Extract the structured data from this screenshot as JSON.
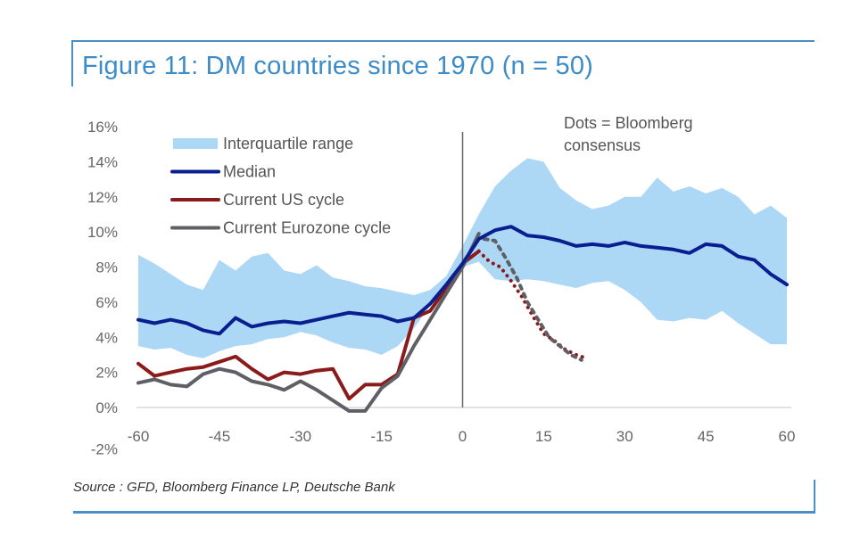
{
  "title": "Figure 11: DM countries since 1970 (n = 50)",
  "source": "Source : GFD, Bloomberg Finance LP, Deutsche Bank",
  "colors": {
    "frame": "#4a90c8",
    "title": "#3d8cc8",
    "iqr": "#add8f5",
    "median": "#0a1f8f",
    "us": "#8b1a1a",
    "ez": "#5f5f66",
    "zero_line": "#666666"
  },
  "chart_data": {
    "type": "line",
    "title": "Figure 11: DM countries since 1970 (n = 50)",
    "xlabel": "",
    "ylabel": "",
    "xlim": [
      -60,
      60
    ],
    "ylim": [
      -2,
      16
    ],
    "x_ticks": [
      -60,
      -45,
      -30,
      -15,
      0,
      15,
      30,
      45,
      60
    ],
    "x_tick_labels": [
      "-60",
      "-45",
      "-30",
      "-15",
      "0",
      "15",
      "30",
      "45",
      "60"
    ],
    "y_ticks": [
      -2,
      0,
      2,
      4,
      6,
      8,
      10,
      12,
      14,
      16
    ],
    "y_tick_labels": [
      "-2%",
      "0%",
      "2%",
      "4%",
      "6%",
      "8%",
      "10%",
      "12%",
      "14%",
      "16%"
    ],
    "grid": false,
    "legend_position": "top-left",
    "annotation": "Dots = Bloomberg consensus",
    "x": [
      -60,
      -57,
      -54,
      -51,
      -48,
      -45,
      -42,
      -39,
      -36,
      -33,
      -30,
      -27,
      -24,
      -21,
      -18,
      -15,
      -12,
      -9,
      -6,
      -3,
      0,
      3,
      6,
      9,
      12,
      15,
      18,
      21,
      24,
      27,
      30,
      33,
      36,
      39,
      42,
      45,
      48,
      51,
      54,
      57,
      60
    ],
    "series": [
      {
        "name": "Interquartile range",
        "type": "band",
        "lower": [
          3.5,
          3.3,
          3.4,
          3.0,
          2.8,
          3.2,
          3.5,
          3.6,
          3.9,
          4.0,
          4.3,
          4.1,
          3.7,
          3.4,
          3.3,
          3.0,
          3.5,
          4.5,
          5.8,
          7.0,
          8.0,
          8.3,
          7.3,
          7.2,
          7.3,
          7.2,
          7.0,
          6.8,
          7.1,
          7.2,
          6.7,
          6.0,
          5.0,
          4.9,
          5.1,
          5.0,
          5.5,
          4.8,
          4.2,
          3.6,
          3.6
        ],
        "upper": [
          8.7,
          8.2,
          7.6,
          7.0,
          6.7,
          8.4,
          7.8,
          8.6,
          8.8,
          7.8,
          7.6,
          8.1,
          7.4,
          7.2,
          6.9,
          6.8,
          6.6,
          6.4,
          6.7,
          7.5,
          9.2,
          11.0,
          12.6,
          13.5,
          14.2,
          14.0,
          12.5,
          11.8,
          11.3,
          11.5,
          12.0,
          12.0,
          13.1,
          12.3,
          12.6,
          12.2,
          12.5,
          12.0,
          11.0,
          11.5,
          10.8
        ]
      },
      {
        "name": "Median",
        "type": "line",
        "values": [
          5.0,
          4.8,
          5.0,
          4.8,
          4.4,
          4.2,
          5.1,
          4.6,
          4.8,
          4.9,
          4.8,
          5.0,
          5.2,
          5.4,
          5.3,
          5.2,
          4.9,
          5.1,
          5.9,
          7.0,
          8.2,
          9.6,
          10.1,
          10.3,
          9.8,
          9.7,
          9.5,
          9.2,
          9.3,
          9.2,
          9.4,
          9.2,
          9.1,
          9.0,
          8.8,
          9.3,
          9.2,
          8.6,
          8.4,
          7.6,
          7.0
        ]
      },
      {
        "name": "Current US cycle",
        "type": "line",
        "values": [
          2.5,
          1.8,
          2.0,
          2.2,
          2.3,
          2.6,
          2.9,
          2.2,
          1.6,
          2.0,
          1.9,
          2.1,
          2.2,
          0.5,
          1.3,
          1.3,
          1.9,
          5.1,
          5.5,
          6.8,
          8.2,
          8.9,
          null,
          null,
          null,
          null,
          null,
          null,
          null,
          null,
          null,
          null,
          null,
          null,
          null,
          null,
          null,
          null,
          null,
          null,
          null
        ]
      },
      {
        "name": "Current US cycle (Bloomberg consensus)",
        "type": "dotted",
        "x": [
          3,
          5,
          7,
          9,
          11,
          13,
          15,
          17,
          19,
          21,
          23
        ],
        "values": [
          8.9,
          8.3,
          8.0,
          7.2,
          6.3,
          5.2,
          4.2,
          3.8,
          3.3,
          3.0,
          2.8
        ]
      },
      {
        "name": "Current Eurozone cycle",
        "type": "line",
        "values": [
          1.4,
          1.6,
          1.3,
          1.2,
          1.9,
          2.2,
          2.0,
          1.5,
          1.3,
          1.0,
          1.5,
          1.0,
          0.4,
          -0.2,
          -0.2,
          1.1,
          1.8,
          3.5,
          5.0,
          6.5,
          8.0,
          9.9,
          null,
          null,
          null,
          null,
          null,
          null,
          null,
          null,
          null,
          null,
          null,
          null,
          null,
          null,
          null,
          null,
          null,
          null,
          null
        ]
      },
      {
        "name": "Current Eurozone cycle (Bloomberg consensus)",
        "type": "dotted",
        "x": [
          4,
          6,
          8,
          10,
          12,
          14,
          16,
          18,
          20,
          22
        ],
        "values": [
          9.6,
          9.5,
          8.5,
          7.4,
          6.0,
          5.0,
          4.0,
          3.5,
          3.0,
          2.7
        ]
      }
    ],
    "legend": [
      {
        "label": "Interquartile range",
        "style": "band"
      },
      {
        "label": "Median",
        "style": "line"
      },
      {
        "label": "Current US cycle",
        "style": "line"
      },
      {
        "label": "Current Eurozone cycle",
        "style": "line"
      }
    ]
  }
}
